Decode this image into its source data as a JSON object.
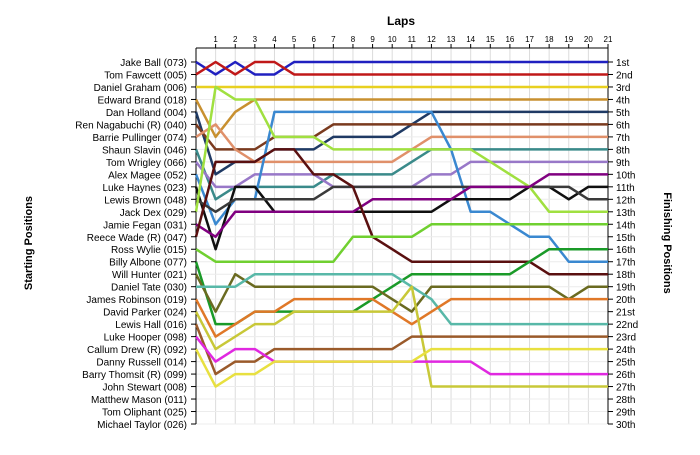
{
  "chart_data": {
    "type": "line",
    "xlabel": "Laps",
    "ylabel_left": "Starting Positions",
    "ylabel_right": "Finishing Positions",
    "x": [
      0,
      1,
      2,
      3,
      4,
      5,
      6,
      7,
      8,
      9,
      10,
      11,
      12,
      13,
      14,
      15,
      16,
      17,
      18,
      19,
      20,
      21
    ],
    "x_tick_labels": [
      "1",
      "2",
      "3",
      "4",
      "5",
      "6",
      "7",
      "8",
      "9",
      "10",
      "11",
      "12",
      "13",
      "14",
      "15",
      "16",
      "17",
      "18",
      "19",
      "20",
      "21"
    ],
    "ylim": [
      1,
      30
    ],
    "grid": true,
    "starting_grid": [
      "Jake Ball (073)",
      "Tom Fawcett (005)",
      "Daniel Graham (006)",
      "Edward Brand (018)",
      "Dan Holland (004)",
      "Ren Nagabuchi  (R) (040)",
      "Barrie Pullinger (074)",
      "Shaun Slavin (046)",
      "Tom Wrigley (066)",
      "Alex Magee (052)",
      "Luke Haynes (023)",
      "Lewis Brown (048)",
      "Jack Dex (029)",
      "Jamie Fegan (031)",
      "Reece Wade  (R) (047)",
      "Ross Wylie (015)",
      "Billy Albone (077)",
      "Will Hunter (021)",
      "Daniel Tate (030)",
      "James Robinson (019)",
      "David Parker (024)",
      "Lewis Hall (016)",
      "Luke Hooper (098)",
      "Callum Drew (R) (092)",
      "Danny Russell (014)",
      "Barry Thomsit (R) (099)",
      "John Stewart (008)",
      "Matthew Mason (011)",
      "Tom Oliphant (025)",
      "Michael Taylor (026)"
    ],
    "finishing_positions": [
      "1st",
      "2nd",
      "3rd",
      "4th",
      "5th",
      "6th",
      "7th",
      "8th",
      "9th",
      "10th",
      "11th",
      "12th",
      "13th",
      "14th",
      "15th",
      "16th",
      "17th",
      "18th",
      "19th",
      "20th",
      "21st",
      "22nd",
      "23rd",
      "24th",
      "25th",
      "26th",
      "27th",
      "28th",
      "29th",
      "30th"
    ],
    "series": [
      {
        "color": "#2020c0",
        "values": [
          1,
          2,
          1,
          2,
          2,
          1,
          1,
          1,
          1,
          1,
          1,
          1,
          1,
          1,
          1,
          1,
          1,
          1,
          1,
          1,
          1,
          1
        ]
      },
      {
        "color": "#c01818",
        "values": [
          2,
          1,
          2,
          1,
          1,
          2,
          2,
          2,
          2,
          2,
          2,
          2,
          2,
          2,
          2,
          2,
          2,
          2,
          2,
          2,
          2,
          2
        ]
      },
      {
        "color": "#e8d020",
        "values": [
          3,
          3,
          3,
          3,
          3,
          3,
          3,
          3,
          3,
          3,
          3,
          3,
          3,
          3,
          3,
          3,
          3,
          3,
          3,
          3,
          3,
          3
        ]
      },
      {
        "color": "#c89030",
        "values": [
          4,
          7,
          5,
          4,
          4,
          4,
          4,
          4,
          4,
          4,
          4,
          4,
          4,
          4,
          4,
          4,
          4,
          4,
          4,
          4,
          4,
          4
        ]
      },
      {
        "color": "#1f3a64",
        "values": [
          5,
          10,
          9,
          9,
          8,
          8,
          8,
          7,
          7,
          7,
          7,
          6,
          5,
          5,
          5,
          5,
          5,
          5,
          5,
          5,
          5,
          5
        ]
      },
      {
        "color": "#7a3a1e",
        "values": [
          6,
          8,
          8,
          8,
          7,
          7,
          7,
          6,
          6,
          6,
          6,
          6,
          6,
          6,
          6,
          6,
          6,
          6,
          6,
          6,
          6,
          6
        ]
      },
      {
        "color": "#e0906a",
        "values": [
          7,
          6,
          8,
          9,
          9,
          9,
          9,
          9,
          9,
          9,
          9,
          8,
          7,
          7,
          7,
          7,
          7,
          7,
          7,
          7,
          7,
          7
        ]
      },
      {
        "color": "#3a8a8a",
        "values": [
          8,
          12,
          11,
          11,
          11,
          11,
          11,
          10,
          10,
          10,
          10,
          9,
          8,
          8,
          8,
          8,
          8,
          8,
          8,
          8,
          8,
          8
        ]
      },
      {
        "color": "#9878c8",
        "values": [
          9,
          11,
          11,
          10,
          10,
          10,
          10,
          11,
          11,
          11,
          11,
          11,
          10,
          10,
          9,
          9,
          9,
          9,
          9,
          9,
          9,
          9
        ]
      },
      {
        "color": "#3a88d0",
        "values": [
          10,
          14,
          12,
          12,
          5,
          5,
          5,
          5,
          5,
          5,
          5,
          5,
          5,
          8,
          13,
          13,
          14,
          15,
          15,
          17,
          17,
          17
        ]
      },
      {
        "color": "#101010",
        "values": [
          11,
          16,
          11,
          11,
          13,
          13,
          13,
          13,
          13,
          13,
          13,
          13,
          13,
          12,
          12,
          12,
          12,
          11,
          11,
          12,
          11,
          11
        ]
      },
      {
        "color": "#3a3a3a",
        "values": [
          12,
          13,
          12,
          12,
          12,
          12,
          12,
          11,
          11,
          11,
          11,
          11,
          11,
          11,
          11,
          11,
          11,
          11,
          11,
          11,
          12,
          12
        ]
      },
      {
        "color": "#a0e040",
        "values": [
          13,
          3,
          4,
          4,
          7,
          7,
          7,
          8,
          8,
          8,
          8,
          8,
          8,
          8,
          8,
          9,
          10,
          11,
          13,
          13,
          13,
          13
        ]
      },
      {
        "color": "#800080",
        "values": [
          14,
          15,
          13,
          13,
          13,
          13,
          13,
          13,
          13,
          12,
          12,
          12,
          12,
          12,
          11,
          11,
          11,
          11,
          10,
          10,
          10,
          10
        ]
      },
      {
        "color": "#5a1010",
        "values": [
          15,
          9,
          9,
          9,
          8,
          8,
          10,
          10,
          11,
          15,
          16,
          17,
          17,
          17,
          17,
          17,
          17,
          17,
          18,
          18,
          18,
          18
        ]
      },
      {
        "color": "#70d030",
        "values": [
          16,
          17,
          17,
          17,
          17,
          17,
          17,
          17,
          15,
          15,
          15,
          15,
          14,
          14,
          14,
          14,
          14,
          14,
          14,
          14,
          14,
          14
        ]
      },
      {
        "color": "#1a9a28",
        "values": [
          17,
          22,
          22,
          21,
          21,
          21,
          21,
          21,
          21,
          20,
          19,
          18,
          18,
          18,
          18,
          18,
          18,
          17,
          16,
          16,
          16,
          16
        ]
      },
      {
        "color": "#6a6a20",
        "values": [
          18,
          21,
          18,
          19,
          19,
          19,
          19,
          19,
          19,
          19,
          20,
          21,
          19,
          19,
          19,
          19,
          19,
          19,
          19,
          20,
          19,
          19
        ]
      },
      {
        "color": "#58b8a8",
        "values": [
          19,
          19,
          19,
          18,
          18,
          18,
          18,
          18,
          18,
          18,
          18,
          19,
          20,
          22,
          22,
          22,
          22,
          22,
          22,
          22,
          22,
          22
        ]
      },
      {
        "color": "#e07828",
        "values": [
          20,
          23,
          22,
          21,
          21,
          20,
          20,
          20,
          20,
          20,
          21,
          22,
          21,
          20,
          20,
          20,
          20,
          20,
          20,
          20,
          20,
          20
        ]
      },
      {
        "color": "#c8c838",
        "values": [
          21,
          24,
          23,
          22,
          22,
          21,
          21,
          21,
          21,
          21,
          21,
          19,
          27,
          27,
          27,
          27,
          27,
          27,
          27,
          27,
          27,
          27
        ]
      },
      {
        "color": "#9a5a2a",
        "values": [
          22,
          26,
          25,
          25,
          24,
          24,
          24,
          24,
          24,
          24,
          24,
          23,
          23,
          23,
          23,
          23,
          23,
          23,
          23,
          23,
          23,
          23
        ]
      },
      {
        "color": "#e028e0",
        "values": [
          23,
          25,
          24,
          24,
          25,
          25,
          25,
          25,
          25,
          25,
          25,
          25,
          25,
          25,
          25,
          26,
          26,
          26,
          26,
          26,
          26,
          26
        ]
      },
      {
        "color": "#e8e040",
        "values": [
          24,
          27,
          26,
          26,
          25,
          25,
          25,
          25,
          25,
          25,
          25,
          25,
          24,
          24,
          24,
          24,
          24,
          24,
          24,
          24,
          24,
          24
        ]
      }
    ]
  }
}
